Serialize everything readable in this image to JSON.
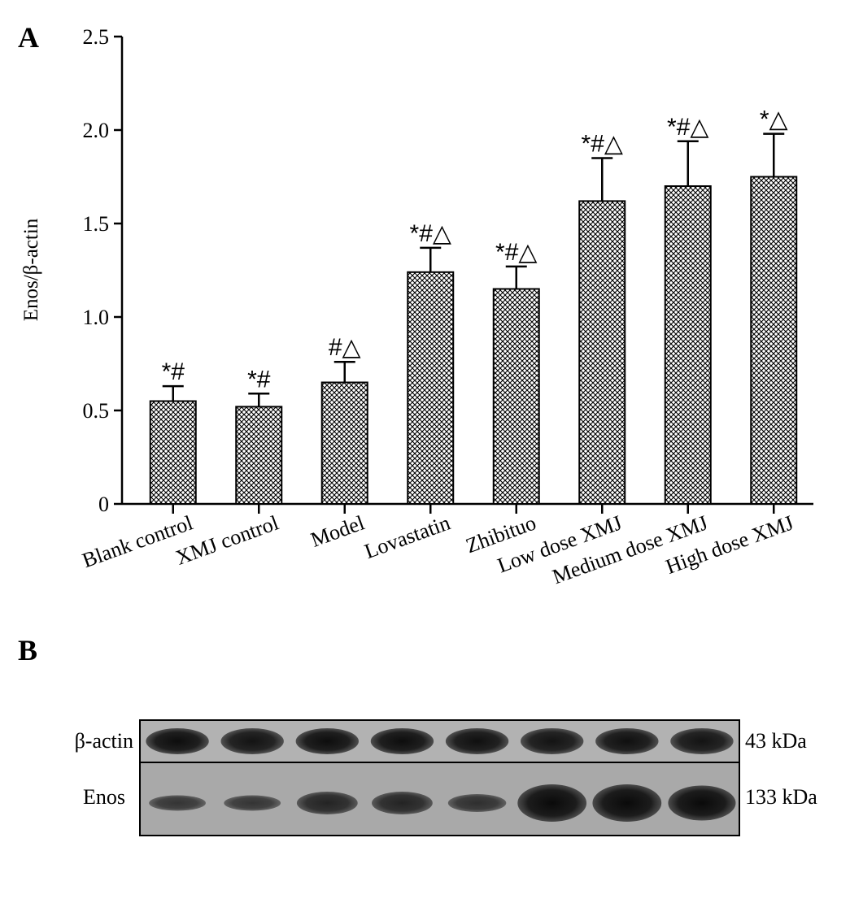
{
  "panels": {
    "a_label": "A",
    "b_label": "B"
  },
  "chart_data": {
    "type": "bar",
    "title": "",
    "xlabel": "",
    "ylabel": "Enos/β-actin",
    "ylim": [
      0,
      2.5
    ],
    "yticks": [
      0,
      0.5,
      1.0,
      1.5,
      2.0,
      2.5
    ],
    "ytick_labels": [
      "0",
      "0.5",
      "1.0",
      "1.5",
      "2.0",
      "2.5"
    ],
    "categories": [
      "Blank control",
      "XMJ control",
      "Model",
      "Lovastatin",
      "Zhibituo",
      "Low dose XMJ",
      "Medium dose XMJ",
      "High dose XMJ"
    ],
    "values": [
      0.55,
      0.52,
      0.65,
      1.24,
      1.15,
      1.62,
      1.7,
      1.75
    ],
    "errors": [
      0.08,
      0.07,
      0.11,
      0.13,
      0.12,
      0.23,
      0.24,
      0.23
    ],
    "significance": [
      "*#",
      "*#",
      "#△",
      "*#△",
      "*#△",
      "*#△",
      "*#△",
      "*△"
    ],
    "bar_fill": "crosshatch",
    "grid": false,
    "legend": "none"
  },
  "blot": {
    "rows": [
      {
        "label": "β-actin",
        "kda": "43 kDa",
        "intensity": [
          0.9,
          0.85,
          0.9,
          0.9,
          0.88,
          0.85,
          0.88,
          0.85
        ]
      },
      {
        "label": "Enos",
        "kda": "133 kDa",
        "intensity": [
          0.55,
          0.55,
          0.7,
          0.7,
          0.6,
          1.0,
          1.0,
          0.95
        ]
      }
    ]
  }
}
